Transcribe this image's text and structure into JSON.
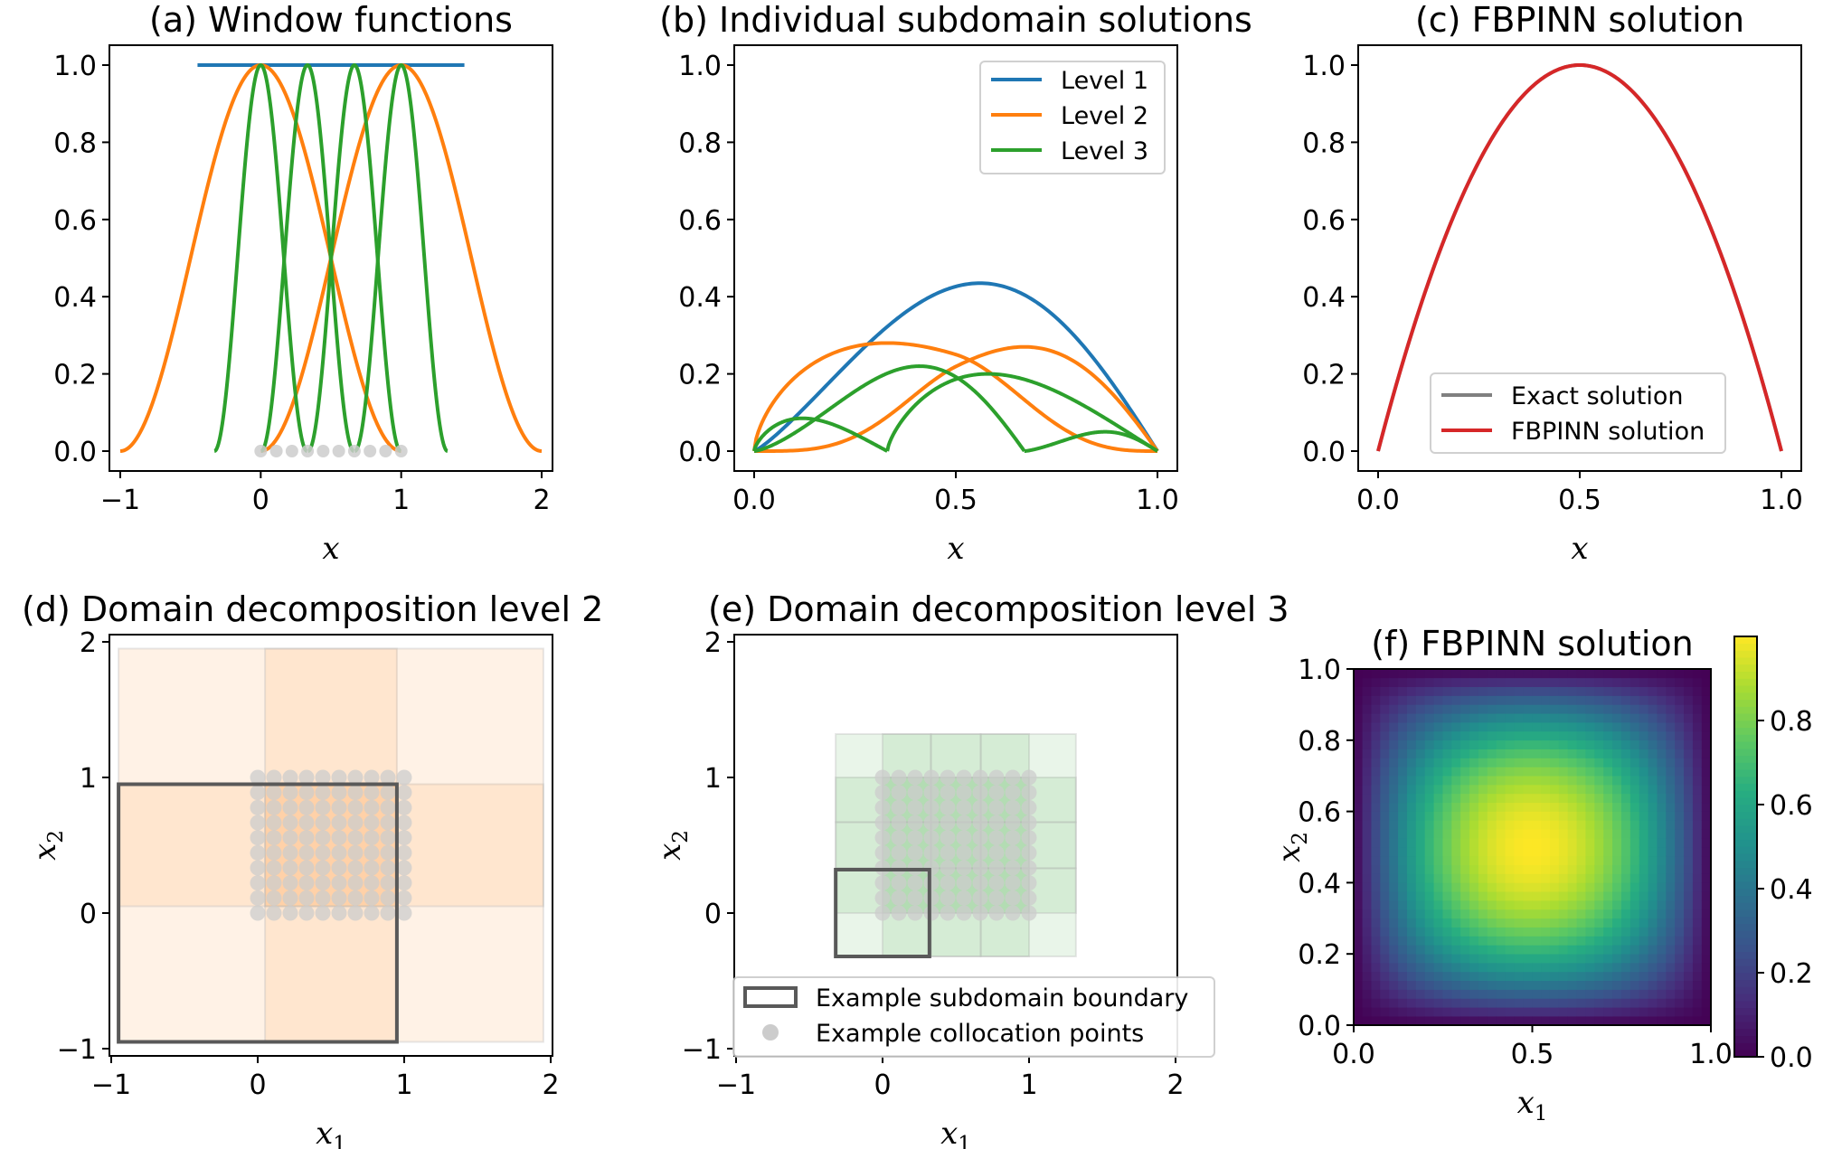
{
  "colors": {
    "level1": "#1f77b4",
    "level2": "#ff7f0e",
    "level3": "#2ca02c",
    "fbpinn": "#d62728",
    "exact": "#808080",
    "boundary": "#595959",
    "points": "#cccccc",
    "colormap": "viridis"
  },
  "chart_data": [
    {
      "id": "a",
      "type": "line",
      "title": "(a) Window functions",
      "xlabel": "x",
      "ylabel": "",
      "xlim": [
        -1.0,
        2.0
      ],
      "ylim": [
        0,
        1.0
      ],
      "xticks": [
        -1,
        0,
        1,
        2
      ],
      "xtick_labels": [
        "−1",
        "0",
        "1",
        "2"
      ],
      "yticks": [
        0.0,
        0.2,
        0.4,
        0.6,
        0.8,
        1.0
      ],
      "ytick_labels": [
        "0.0",
        "0.2",
        "0.4",
        "0.6",
        "0.8",
        "1.0"
      ],
      "series": [
        {
          "level": 1,
          "kind": "constant",
          "x_range": [
            -0.45,
            1.45
          ],
          "value": 1.0
        },
        {
          "level": 2,
          "kind": "window",
          "center": 0.0,
          "half_width": 1.0
        },
        {
          "level": 2,
          "kind": "window",
          "center": 1.0,
          "half_width": 1.0
        },
        {
          "level": 3,
          "kind": "window",
          "center": 0.0,
          "half_width": 0.33
        },
        {
          "level": 3,
          "kind": "window",
          "center": 0.333,
          "half_width": 0.33
        },
        {
          "level": 3,
          "kind": "window",
          "center": 0.667,
          "half_width": 0.33
        },
        {
          "level": 3,
          "kind": "window",
          "center": 1.0,
          "half_width": 0.33
        }
      ],
      "points_x_range": [
        0,
        1
      ],
      "points_count": 10
    },
    {
      "id": "b",
      "type": "line",
      "title": "(b) Individual subdomain solutions",
      "xlabel": "x",
      "ylabel": "",
      "xlim": [
        0,
        1.0
      ],
      "ylim": [
        0,
        1.0
      ],
      "xticks": [
        0.0,
        0.5,
        1.0
      ],
      "xtick_labels": [
        "0.0",
        "0.5",
        "1.0"
      ],
      "yticks": [
        0.0,
        0.2,
        0.4,
        0.6,
        0.8,
        1.0
      ],
      "ytick_labels": [
        "0.0",
        "0.2",
        "0.4",
        "0.6",
        "0.8",
        "1.0"
      ],
      "legend": [
        "Level 1",
        "Level 2",
        "Level 3"
      ],
      "legend_position": "top-right",
      "series": [
        {
          "level": 1,
          "kind": "bump",
          "start": 0.0,
          "end": 1.0,
          "peak_x": 0.56,
          "peak_y": 0.435
        },
        {
          "level": 2,
          "kind": "bump",
          "start": 0.0,
          "end": 1.0,
          "peak_x": 0.33,
          "peak_y": 0.28,
          "fade": "right"
        },
        {
          "level": 2,
          "kind": "bump",
          "start": 0.0,
          "end": 1.0,
          "peak_x": 0.67,
          "peak_y": 0.27,
          "fade": "left"
        },
        {
          "level": 3,
          "kind": "bump",
          "start": 0.0,
          "end": 0.33,
          "peak_x": 0.12,
          "peak_y": 0.085
        },
        {
          "level": 3,
          "kind": "bump",
          "start": 0.0,
          "end": 0.67,
          "peak_x": 0.41,
          "peak_y": 0.22
        },
        {
          "level": 3,
          "kind": "bump",
          "start": 0.33,
          "end": 1.0,
          "peak_x": 0.58,
          "peak_y": 0.2
        },
        {
          "level": 3,
          "kind": "bump",
          "start": 0.67,
          "end": 1.0,
          "peak_x": 0.87,
          "peak_y": 0.05
        }
      ]
    },
    {
      "id": "c",
      "type": "line",
      "title": "(c) FBPINN solution",
      "xlabel": "x",
      "ylabel": "",
      "xlim": [
        0,
        1.0
      ],
      "ylim": [
        0,
        1.0
      ],
      "xticks": [
        0.0,
        0.5,
        1.0
      ],
      "xtick_labels": [
        "0.0",
        "0.5",
        "1.0"
      ],
      "yticks": [
        0.0,
        0.2,
        0.4,
        0.6,
        0.8,
        1.0
      ],
      "ytick_labels": [
        "0.0",
        "0.2",
        "0.4",
        "0.6",
        "0.8",
        "1.0"
      ],
      "legend": [
        "Exact solution",
        "FBPINN solution"
      ],
      "legend_position": "lower center",
      "function": "4x(1-x)"
    },
    {
      "id": "d",
      "type": "other",
      "title": "(d) Domain decomposition level 2",
      "xlabel": "x1",
      "ylabel": "x2",
      "xlim": [
        -1,
        2
      ],
      "ylim": [
        -1,
        2
      ],
      "ticks": [
        -1,
        0,
        1,
        2
      ],
      "tick_labels": [
        "−1",
        "0",
        "1",
        "2"
      ],
      "subdomain_edges": [
        -0.95,
        0.05,
        0.95,
        1.95
      ],
      "example_subdomain": [
        -0.95,
        -0.95,
        0.95,
        0.95
      ],
      "collocation_grid": {
        "range": [
          0,
          1
        ],
        "n": 10
      }
    },
    {
      "id": "e",
      "type": "other",
      "title": "(e) Domain decomposition level 3",
      "xlabel": "x1",
      "ylabel": "x2",
      "xlim": [
        -1,
        2
      ],
      "ylim": [
        -1,
        2
      ],
      "ticks": [
        -1,
        0,
        1,
        2
      ],
      "tick_labels": [
        "−1",
        "0",
        "1",
        "2"
      ],
      "subdomain_edges": [
        -0.32,
        0.0,
        0.33,
        0.67,
        1.0,
        1.32
      ],
      "example_subdomain": [
        -0.32,
        -0.32,
        0.32,
        0.32
      ],
      "collocation_grid": {
        "range": [
          0,
          1
        ],
        "n": 10
      },
      "legend": [
        "Example subdomain boundary",
        "Example collocation points"
      ],
      "legend_position": "bottom"
    },
    {
      "id": "f",
      "type": "heatmap",
      "title": "(f) FBPINN solution",
      "xlabel": "x1",
      "ylabel": "x2",
      "xlim": [
        0,
        1.0
      ],
      "ylim": [
        0,
        1.0
      ],
      "xticks": [
        0.0,
        0.5,
        1.0
      ],
      "xtick_labels": [
        "0.0",
        "0.5",
        "1.0"
      ],
      "yticks": [
        0.0,
        0.2,
        0.4,
        0.6,
        0.8,
        1.0
      ],
      "ytick_labels": [
        "0.0",
        "0.2",
        "0.4",
        "0.6",
        "0.8",
        "1.0"
      ],
      "function": "16 x1(1-x1) x2(1-x2)",
      "colorbar_range": [
        0,
        1
      ],
      "colorbar_ticks": [
        0.0,
        0.2,
        0.4,
        0.6,
        0.8
      ],
      "colorbar_labels": [
        "0.0",
        "0.2",
        "0.4",
        "0.6",
        "0.8"
      ]
    }
  ]
}
